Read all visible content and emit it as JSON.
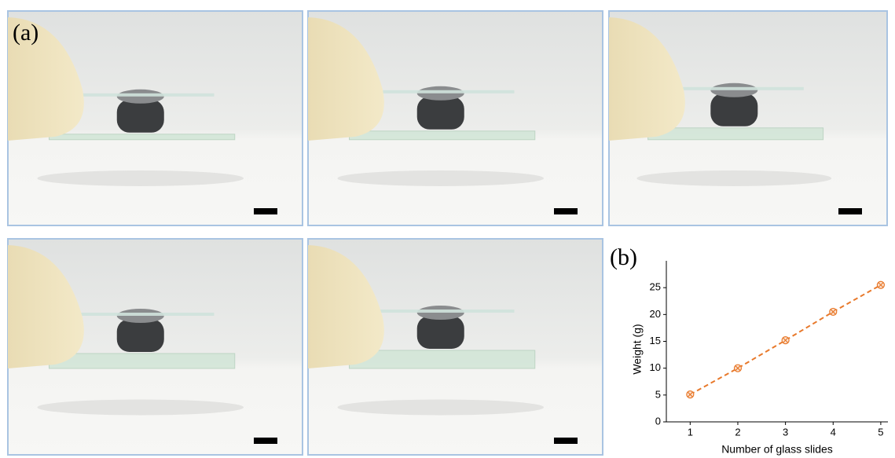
{
  "figure": {
    "panel_a_label": "(a)",
    "panel_b_label": "(b)"
  },
  "chart_data": {
    "type": "line",
    "x_label": "Number of glass slides",
    "y_label": "Weight (g)",
    "x": [
      1,
      2,
      3,
      4,
      5
    ],
    "series": [
      {
        "color": "#e8792b",
        "values": [
          5.1,
          10.0,
          15.2,
          20.5,
          25.5
        ]
      }
    ],
    "xlim": [
      0.5,
      5.15
    ],
    "xticks": [
      1,
      2,
      3,
      4,
      5
    ],
    "ylim": [
      0,
      30
    ],
    "yticks": [
      0,
      5,
      10,
      15,
      20,
      25
    ],
    "line_style": "dashed",
    "marker": "circle-x"
  }
}
